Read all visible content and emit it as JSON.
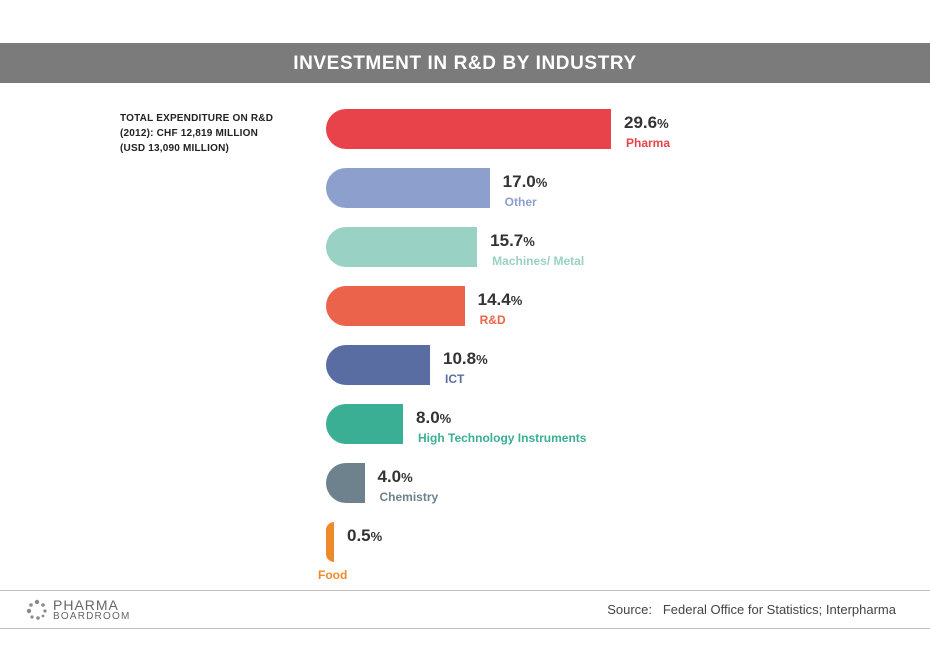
{
  "chart_data": {
    "type": "bar",
    "title": "INVESTMENT IN R&D BY INDUSTRY",
    "total_note": "TOTAL EXPENDITURE ON R&D\n(2012): CHF 12,819 MILLION\n(USD 13,090 MILLION)",
    "categories": [
      "Pharma",
      "Other",
      "Machines/ Metal",
      "R&D",
      "ICT",
      "High Technology Instruments",
      "Chemistry",
      "Food"
    ],
    "values": [
      29.6,
      17.0,
      15.7,
      14.4,
      10.8,
      8.0,
      4.0,
      0.5
    ],
    "value_labels": [
      "29.6",
      "17.0",
      "15.7",
      "14.4",
      "10.8",
      "8.0",
      "4.0",
      "0.5"
    ],
    "value_suffix": "%",
    "colors": [
      "#e8434b",
      "#8c9fcd",
      "#99d2c4",
      "#ec634c",
      "#5a6da3",
      "#3aaf93",
      "#6d828c",
      "#ef8a2b"
    ],
    "orientation": "horizontal",
    "grid": false,
    "legend": "none"
  },
  "footer": {
    "logo_top": "PHARMA",
    "logo_bottom": "BOARDROOM",
    "source": "Source:   Federal Office for Statistics; Interpharma"
  }
}
